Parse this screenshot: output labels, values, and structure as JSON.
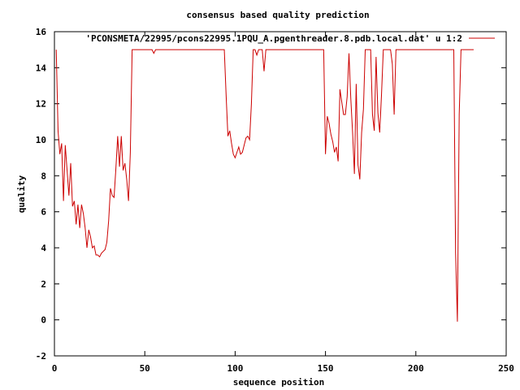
{
  "chart_data": {
    "type": "line",
    "title": "consensus based quality prediction",
    "xlabel": "sequence position",
    "ylabel": "quality",
    "xlim": [
      0,
      250
    ],
    "ylim": [
      -2,
      16
    ],
    "xticks": [
      0,
      50,
      100,
      150,
      200,
      250
    ],
    "yticks": [
      -2,
      0,
      2,
      4,
      6,
      8,
      10,
      12,
      14,
      16
    ],
    "grid": false,
    "legend_position": "top-right",
    "series": [
      {
        "name": "'PCONSMETA/22995/pcons22995.1PQU_A.pgenthreader.8.pdb.local.dat' u 1:2",
        "color": "#cc0000",
        "points": [
          [
            1,
            15
          ],
          [
            2,
            10.5
          ],
          [
            3,
            9.2
          ],
          [
            4,
            9.8
          ],
          [
            5,
            6.6
          ],
          [
            6,
            9.7
          ],
          [
            7,
            8.3
          ],
          [
            8,
            6.9
          ],
          [
            9,
            8.7
          ],
          [
            10,
            6.3
          ],
          [
            11,
            6.6
          ],
          [
            12,
            5.3
          ],
          [
            13,
            6.4
          ],
          [
            14,
            5.1
          ],
          [
            15,
            6.4
          ],
          [
            16,
            5.9
          ],
          [
            17,
            5.1
          ],
          [
            18,
            4.0
          ],
          [
            19,
            5.0
          ],
          [
            20,
            4.6
          ],
          [
            21,
            4.0
          ],
          [
            22,
            4.1
          ],
          [
            23,
            3.6
          ],
          [
            24,
            3.6
          ],
          [
            25,
            3.5
          ],
          [
            26,
            3.7
          ],
          [
            27,
            3.8
          ],
          [
            28,
            3.9
          ],
          [
            29,
            4.3
          ],
          [
            30,
            5.5
          ],
          [
            31,
            7.3
          ],
          [
            32,
            6.9
          ],
          [
            33,
            6.8
          ],
          [
            34,
            8.4
          ],
          [
            35,
            10.2
          ],
          [
            36,
            8.5
          ],
          [
            37,
            10.2
          ],
          [
            38,
            8.3
          ],
          [
            39,
            8.7
          ],
          [
            40,
            7.8
          ],
          [
            41,
            6.6
          ],
          [
            42,
            9.3
          ],
          [
            43,
            15
          ],
          [
            50,
            15
          ],
          [
            54,
            15
          ],
          [
            55,
            14.8
          ],
          [
            56,
            15
          ],
          [
            65,
            15
          ],
          [
            75,
            15
          ],
          [
            85,
            15
          ],
          [
            94,
            15
          ],
          [
            95,
            12.5
          ],
          [
            96,
            10.2
          ],
          [
            97,
            10.5
          ],
          [
            98,
            9.8
          ],
          [
            99,
            9.2
          ],
          [
            100,
            9.0
          ],
          [
            101,
            9.3
          ],
          [
            102,
            9.6
          ],
          [
            103,
            9.2
          ],
          [
            104,
            9.3
          ],
          [
            105,
            9.7
          ],
          [
            106,
            10.1
          ],
          [
            107,
            10.2
          ],
          [
            108,
            10.0
          ],
          [
            109,
            12.0
          ],
          [
            110,
            15
          ],
          [
            111,
            15
          ],
          [
            112,
            14.7
          ],
          [
            113,
            15
          ],
          [
            115,
            15
          ],
          [
            116,
            13.8
          ],
          [
            117,
            15
          ],
          [
            130,
            15
          ],
          [
            140,
            15
          ],
          [
            149,
            15
          ],
          [
            150,
            9.2
          ],
          [
            151,
            11.3
          ],
          [
            152,
            10.9
          ],
          [
            153,
            10.3
          ],
          [
            154,
            9.9
          ],
          [
            155,
            9.3
          ],
          [
            156,
            9.6
          ],
          [
            157,
            8.8
          ],
          [
            158,
            12.8
          ],
          [
            159,
            12.1
          ],
          [
            160,
            11.4
          ],
          [
            161,
            11.4
          ],
          [
            162,
            12.4
          ],
          [
            163,
            14.8
          ],
          [
            164,
            12.3
          ],
          [
            165,
            10.4
          ],
          [
            166,
            8.1
          ],
          [
            167,
            13.1
          ],
          [
            168,
            8.6
          ],
          [
            169,
            7.8
          ],
          [
            170,
            10.4
          ],
          [
            171,
            11.7
          ],
          [
            172,
            15
          ],
          [
            174,
            15
          ],
          [
            175,
            15
          ],
          [
            176,
            11.4
          ],
          [
            177,
            10.5
          ],
          [
            178,
            14.6
          ],
          [
            179,
            11.5
          ],
          [
            180,
            10.4
          ],
          [
            181,
            12.5
          ],
          [
            182,
            15
          ],
          [
            186,
            15
          ],
          [
            187,
            14.2
          ],
          [
            188,
            11.4
          ],
          [
            189,
            15
          ],
          [
            200,
            15
          ],
          [
            210,
            15
          ],
          [
            221,
            15
          ],
          [
            222,
            3.7
          ],
          [
            223,
            -0.1
          ],
          [
            224,
            11.4
          ],
          [
            225,
            15
          ],
          [
            232,
            15
          ]
        ]
      }
    ]
  }
}
